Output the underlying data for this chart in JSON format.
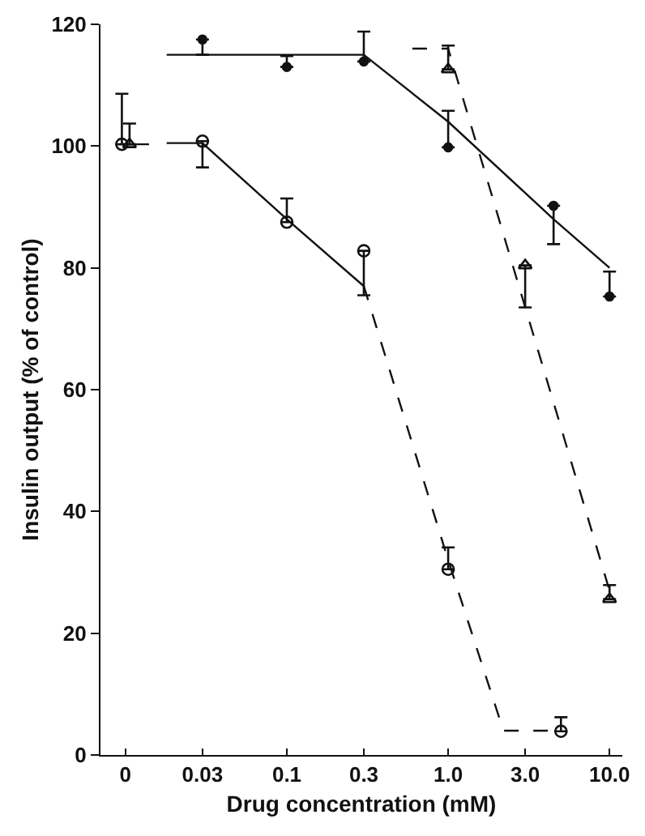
{
  "chart_data": {
    "type": "scatter",
    "xlabel": "Drug concentration (mM)",
    "ylabel": "Insulin output (% of control)",
    "log": "x",
    "xlim": [
      0.007,
      12
    ],
    "ylim": [
      0,
      120
    ],
    "xticks": [
      {
        "value": 0.01,
        "label": "0"
      },
      0.03,
      0.1,
      0.3,
      {
        "value": 1,
        "label": "1.0"
      },
      {
        "value": 3,
        "label": "3.0"
      },
      {
        "value": 10,
        "label": "10.0"
      }
    ],
    "yticks": [
      0,
      20,
      40,
      60,
      80,
      100,
      120
    ],
    "grid": false,
    "series": [
      {
        "marker": "circle-open",
        "color": "#111111",
        "x": [
          0.0095,
          0.03,
          0.1,
          0.3,
          1,
          5
        ],
        "values": [
          100.3,
          100.8,
          87.5,
          82.8,
          30.5,
          3.9
        ],
        "errors": [
          [
            100.3,
            108.6
          ],
          [
            96.5,
            100.8
          ],
          [
            87.5,
            91.4
          ],
          [
            75.5,
            82.8
          ],
          [
            30.5,
            34.1
          ],
          [
            3.9,
            6.2
          ]
        ]
      },
      {
        "marker": "circle",
        "color": "#111111",
        "x": [
          0.03,
          0.1,
          0.3,
          1,
          4.5,
          10
        ],
        "values": [
          117.5,
          113,
          113.9,
          99.8,
          90.2,
          75.3
        ],
        "errors": [
          [
            115,
            117.5
          ],
          [
            113,
            114.8
          ],
          [
            113.9,
            118.8
          ],
          [
            99.8,
            105.8
          ],
          [
            83.9,
            90.2
          ],
          [
            75.3,
            79.4
          ]
        ]
      },
      {
        "marker": "triangle-up-open",
        "color": "#111111",
        "x": [
          0.0106,
          1,
          3,
          10
        ],
        "values": [
          100.3,
          112.6,
          80.4,
          25.6
        ],
        "errors": [
          [
            100.3,
            103.7
          ],
          [
            112.6,
            116.5
          ],
          [
            73.5,
            80.4
          ],
          [
            25.6,
            27.9
          ]
        ]
      },
      {
        "type": "line",
        "marker": "none",
        "line_style": "solid",
        "color": "#111111",
        "x": [
          0.0095,
          0.014
        ],
        "values": [
          100.3,
          100.3
        ]
      },
      {
        "type": "line",
        "marker": "none",
        "line_style": "solid",
        "color": "#111111",
        "x": [
          0.018,
          0.03,
          0.1,
          0.3
        ],
        "values": [
          100.5,
          100.5,
          88,
          77
        ]
      },
      {
        "type": "line",
        "marker": "none",
        "line_style": "dashed",
        "color": "#111111",
        "x": [
          0.3,
          1,
          2.2,
          4.5
        ],
        "values": [
          77,
          32,
          4,
          4
        ]
      },
      {
        "type": "line",
        "marker": "none",
        "line_style": "solid",
        "color": "#111111",
        "x": [
          0.018,
          0.3,
          1,
          4.5,
          10
        ],
        "values": [
          115,
          115,
          104,
          88,
          80
        ]
      },
      {
        "type": "line",
        "marker": "none",
        "line_style": "dashed",
        "color": "#111111",
        "x": [
          0.6,
          1,
          10
        ],
        "values": [
          116,
          116,
          27
        ]
      }
    ]
  }
}
